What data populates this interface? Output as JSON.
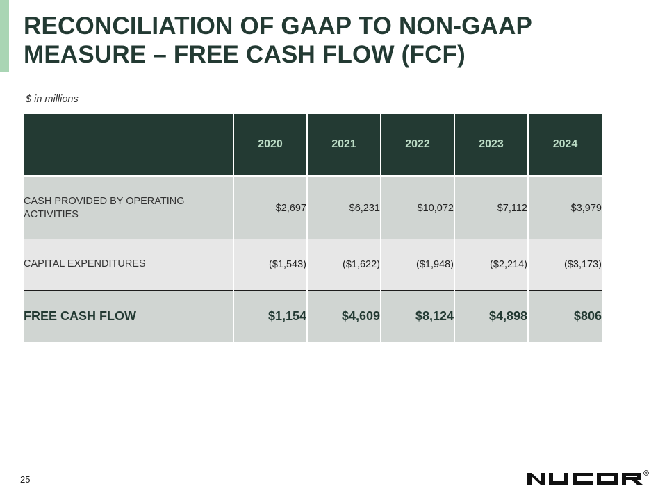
{
  "title": {
    "line1": "RECONCILIATION OF GAAP TO NON-GAAP",
    "line2": "MEASURE – FREE CASH FLOW (FCF)"
  },
  "units_note": "$ in millions",
  "table": {
    "columns": [
      "2020",
      "2021",
      "2022",
      "2023",
      "2024"
    ],
    "rows": [
      {
        "label": "CASH PROVIDED BY OPERATING ACTIVITIES",
        "values": [
          "$2,697",
          "$6,231",
          "$10,072",
          "$7,112",
          "$3,979"
        ]
      },
      {
        "label": "CAPITAL EXPENDITURES",
        "values": [
          "($1,543)",
          "($1,622)",
          "($1,948)",
          "($2,214)",
          "($3,173)"
        ]
      },
      {
        "label": "FREE CASH FLOW",
        "values": [
          "$1,154",
          "$4,609",
          "$8,124",
          "$4,898",
          "$806"
        ]
      }
    ]
  },
  "page_number": "25",
  "logo": {
    "text": "NUCOR",
    "mark": "®",
    "icon": "nucor-logo"
  },
  "colors": {
    "accent": "#a9d5b4",
    "dark_green": "#233a33",
    "row_gray": "#d0d5d2",
    "row_light": "#e7e7e7"
  }
}
